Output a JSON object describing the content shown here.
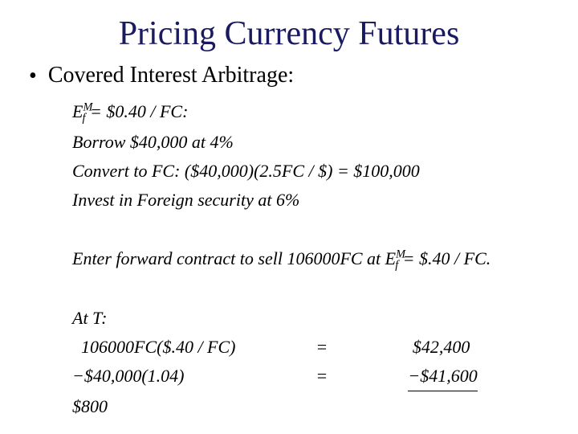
{
  "title_color": "#1a1a60",
  "text_color": "#000000",
  "background_color": "#ffffff",
  "font_family": "Times New Roman",
  "title": "Pricing Currency Futures",
  "bullet": "Covered Interest Arbitrage:",
  "lines": {
    "l1_pre": "E",
    "l1_sup": "M",
    "l1_sub": "f",
    "l1_post": " = $0.40 / FC:",
    "l2": "Borrow $40,000 at 4%",
    "l3": "Convert to FC: ($40,000)(2.5FC / $) = $100,000",
    "l4": "Invest in Foreign security at 6%",
    "l5_pre": "Enter forward contract to sell 106000FC at E",
    "l5_sup": "M",
    "l5_sub": "f",
    "l5_post": " = $.40 / FC.",
    "l6": "At T:",
    "c1_left": "  106000FC($.40 / FC)",
    "c1_eq": "=",
    "c1_right": " $42,400",
    "c2_left": "−$40,000(1.04)",
    "c2_eq": "=",
    "c2_right": "−$41,600",
    "sum": "$800"
  }
}
